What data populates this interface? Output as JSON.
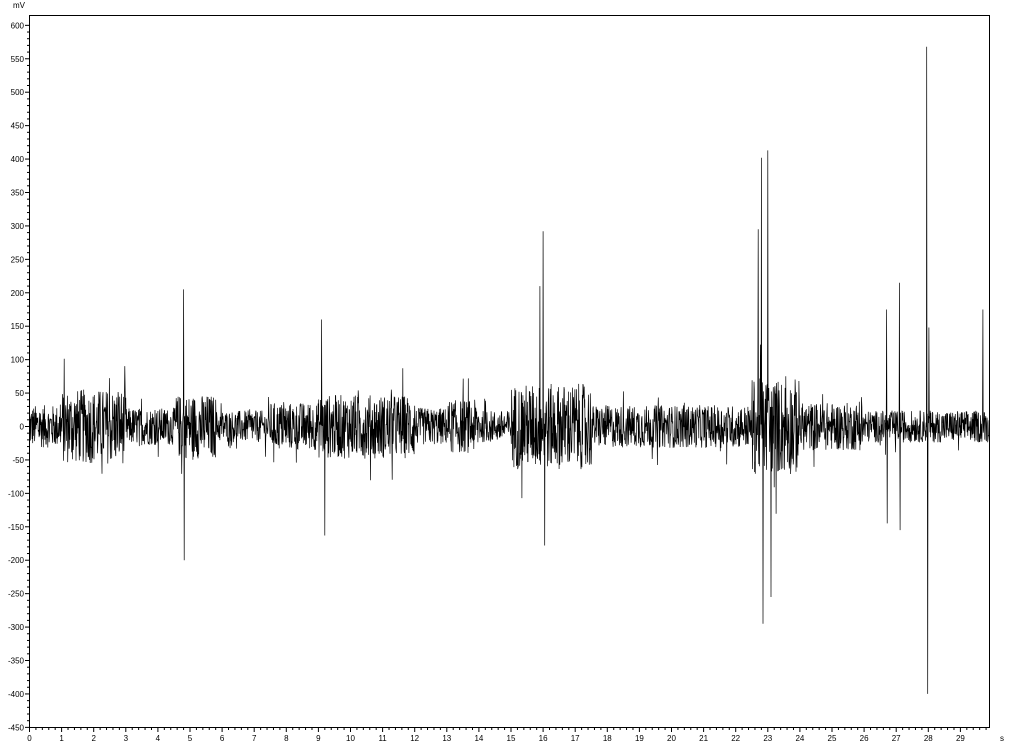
{
  "chart_data": {
    "type": "line",
    "title": "",
    "xlabel": "s",
    "ylabel": "mV",
    "xlim": [
      0,
      29.9
    ],
    "ylim": [
      -450,
      615
    ],
    "x_ticks": [
      0,
      1,
      2,
      3,
      4,
      5,
      6,
      7,
      8,
      9,
      10,
      11,
      12,
      13,
      14,
      15,
      16,
      17,
      18,
      19,
      20,
      21,
      22,
      23,
      24,
      25,
      26,
      27,
      28,
      29
    ],
    "y_ticks": [
      600,
      550,
      500,
      450,
      400,
      350,
      300,
      250,
      200,
      150,
      100,
      50,
      0,
      -50,
      -100,
      -150,
      -200,
      -250,
      -300,
      -350,
      -400,
      -450
    ],
    "grid": false,
    "line_color": "#000000",
    "series_description_envelope": [
      {
        "t_start": 0,
        "t_end": 1,
        "amplitude": 40
      },
      {
        "t_start": 1,
        "t_end": 3,
        "amplitude": 70
      },
      {
        "t_start": 3,
        "t_end": 4.5,
        "amplitude": 35
      },
      {
        "t_start": 4.5,
        "t_end": 5.8,
        "amplitude": 60
      },
      {
        "t_start": 5.8,
        "t_end": 7.5,
        "amplitude": 30
      },
      {
        "t_start": 7.5,
        "t_end": 9,
        "amplitude": 45
      },
      {
        "t_start": 9,
        "t_end": 12,
        "amplitude": 60
      },
      {
        "t_start": 12,
        "t_end": 13,
        "amplitude": 35
      },
      {
        "t_start": 13,
        "t_end": 14,
        "amplitude": 50
      },
      {
        "t_start": 14,
        "t_end": 15,
        "amplitude": 30
      },
      {
        "t_start": 15,
        "t_end": 17.5,
        "amplitude": 80
      },
      {
        "t_start": 17.5,
        "t_end": 22.5,
        "amplitude": 40
      },
      {
        "t_start": 22.5,
        "t_end": 24,
        "amplitude": 90
      },
      {
        "t_start": 24,
        "t_end": 26,
        "amplitude": 45
      },
      {
        "t_start": 26,
        "t_end": 29.9,
        "amplitude": 30
      }
    ],
    "peaks": [
      {
        "t": 4.8,
        "v": 205
      },
      {
        "t": 4.82,
        "v": -200
      },
      {
        "t": 9.1,
        "v": 160
      },
      {
        "t": 9.2,
        "v": -163
      },
      {
        "t": 15.9,
        "v": 210
      },
      {
        "t": 16.0,
        "v": 292
      },
      {
        "t": 16.05,
        "v": -178
      },
      {
        "t": 22.7,
        "v": 295
      },
      {
        "t": 22.8,
        "v": 402
      },
      {
        "t": 22.85,
        "v": -295
      },
      {
        "t": 23.0,
        "v": 413
      },
      {
        "t": 23.1,
        "v": -255
      },
      {
        "t": 26.7,
        "v": 175
      },
      {
        "t": 26.72,
        "v": -145
      },
      {
        "t": 27.1,
        "v": 215
      },
      {
        "t": 27.12,
        "v": -155
      },
      {
        "t": 27.95,
        "v": 568
      },
      {
        "t": 27.98,
        "v": -400
      },
      {
        "t": 28.02,
        "v": 148
      },
      {
        "t": 29.7,
        "v": 175
      }
    ]
  }
}
